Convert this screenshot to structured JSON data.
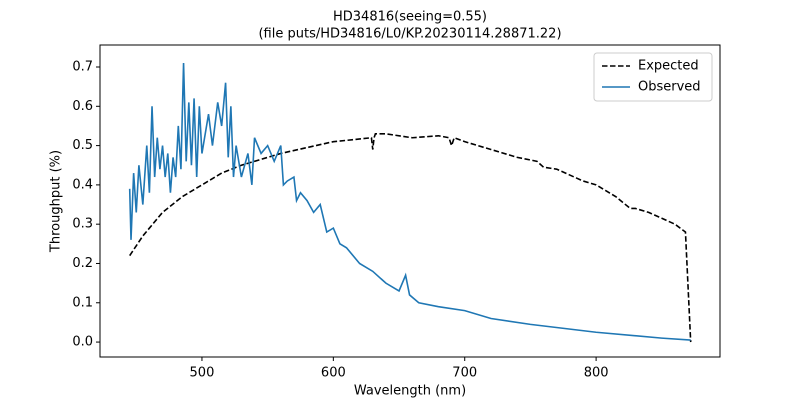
{
  "chart_data": {
    "type": "line",
    "title": "HD34816(seeing=0.55)",
    "subtitle": "(file puts/HD34816/L0/KP.20230114.28871.22)",
    "x_label": "Wavelength (nm)",
    "y_label": "Throughput (%)",
    "xlim": [
      422.4,
      894.3
    ],
    "ylim": [
      -0.038,
      0.756
    ],
    "xticks": [
      500,
      600,
      700,
      800
    ],
    "yticks": [
      {
        "value": 0,
        "label": "0.0"
      },
      0.1,
      0.2,
      0.3,
      0.4,
      0.5,
      0.6,
      0.7
    ],
    "legend": "upper right",
    "series": [
      {
        "name": "Expected",
        "color": "#000000",
        "linestyle": "dashed",
        "x": [
          445,
          455,
          470,
          485,
          500,
          515,
          530,
          545,
          560,
          580,
          600,
          615,
          629,
          630,
          631,
          632,
          640,
          660,
          680,
          688,
          690,
          692,
          700,
          720,
          740,
          755,
          760,
          770,
          790,
          800,
          815,
          826,
          830,
          840,
          860,
          868,
          872
        ],
        "values": [
          0.22,
          0.27,
          0.33,
          0.37,
          0.4,
          0.43,
          0.45,
          0.465,
          0.48,
          0.495,
          0.51,
          0.515,
          0.52,
          0.49,
          0.52,
          0.53,
          0.53,
          0.52,
          0.525,
          0.52,
          0.5,
          0.52,
          0.51,
          0.49,
          0.47,
          0.46,
          0.445,
          0.44,
          0.41,
          0.4,
          0.37,
          0.34,
          0.34,
          0.33,
          0.3,
          0.28,
          0.0
        ]
      },
      {
        "name": "Observed",
        "color": "#1f77b4",
        "linestyle": "solid",
        "x": [
          445,
          446,
          448,
          450,
          452,
          455,
          458,
          460,
          462,
          464,
          466,
          468,
          470,
          472,
          474,
          476,
          478,
          480,
          482,
          484,
          486,
          488,
          490,
          492,
          494,
          496,
          498,
          500,
          505,
          508,
          512,
          515,
          518,
          520,
          522,
          524,
          526,
          530,
          535,
          538,
          540,
          545,
          550,
          555,
          560,
          562,
          565,
          570,
          572,
          575,
          580,
          585,
          590,
          595,
          600,
          605,
          610,
          620,
          630,
          640,
          650,
          655,
          658,
          665,
          680,
          700,
          720,
          750,
          800,
          850,
          872
        ],
        "values": [
          0.39,
          0.26,
          0.43,
          0.33,
          0.45,
          0.35,
          0.5,
          0.38,
          0.6,
          0.42,
          0.52,
          0.44,
          0.5,
          0.42,
          0.48,
          0.38,
          0.47,
          0.42,
          0.55,
          0.44,
          0.71,
          0.46,
          0.61,
          0.45,
          0.62,
          0.42,
          0.6,
          0.48,
          0.58,
          0.5,
          0.61,
          0.55,
          0.66,
          0.47,
          0.6,
          0.42,
          0.5,
          0.42,
          0.48,
          0.4,
          0.52,
          0.48,
          0.5,
          0.46,
          0.5,
          0.4,
          0.41,
          0.42,
          0.36,
          0.38,
          0.36,
          0.33,
          0.35,
          0.28,
          0.29,
          0.25,
          0.24,
          0.2,
          0.18,
          0.15,
          0.13,
          0.17,
          0.12,
          0.1,
          0.09,
          0.08,
          0.06,
          0.045,
          0.025,
          0.01,
          0.005
        ]
      }
    ]
  }
}
